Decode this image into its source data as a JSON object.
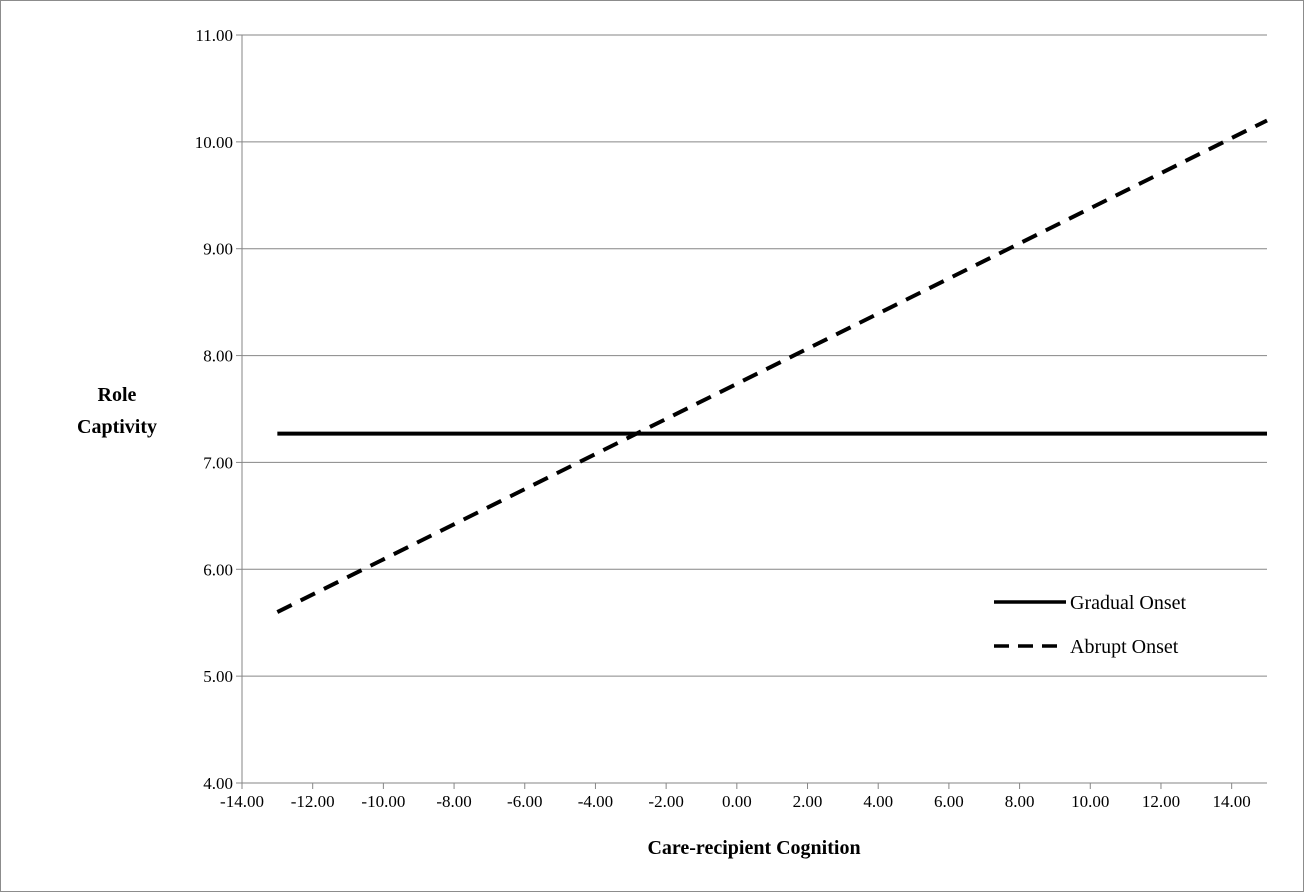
{
  "chart_data": {
    "type": "line",
    "xlabel": "Care-recipient Cognition",
    "ylabel_lines": [
      "Role",
      "Captivity"
    ],
    "xlim": [
      -14,
      15
    ],
    "ylim": [
      4,
      11
    ],
    "x_ticks": [
      "-14.00",
      "-12.00",
      "-10.00",
      "-8.00",
      "-6.00",
      "-4.00",
      "-2.00",
      "0.00",
      "2.00",
      "4.00",
      "6.00",
      "8.00",
      "10.00",
      "12.00",
      "14.00"
    ],
    "y_ticks": [
      "4.00",
      "5.00",
      "6.00",
      "7.00",
      "8.00",
      "9.00",
      "10.00",
      "11.00"
    ],
    "grid": "horizontal",
    "legend_position": "right",
    "series": [
      {
        "name": "Gradual Onset",
        "style": "solid",
        "color": "#000000",
        "x": [
          -13,
          15
        ],
        "y": [
          7.27,
          7.27
        ]
      },
      {
        "name": "Abrupt Onset",
        "style": "dashed",
        "color": "#000000",
        "x": [
          -13,
          15
        ],
        "y": [
          5.6,
          10.2
        ]
      }
    ]
  }
}
